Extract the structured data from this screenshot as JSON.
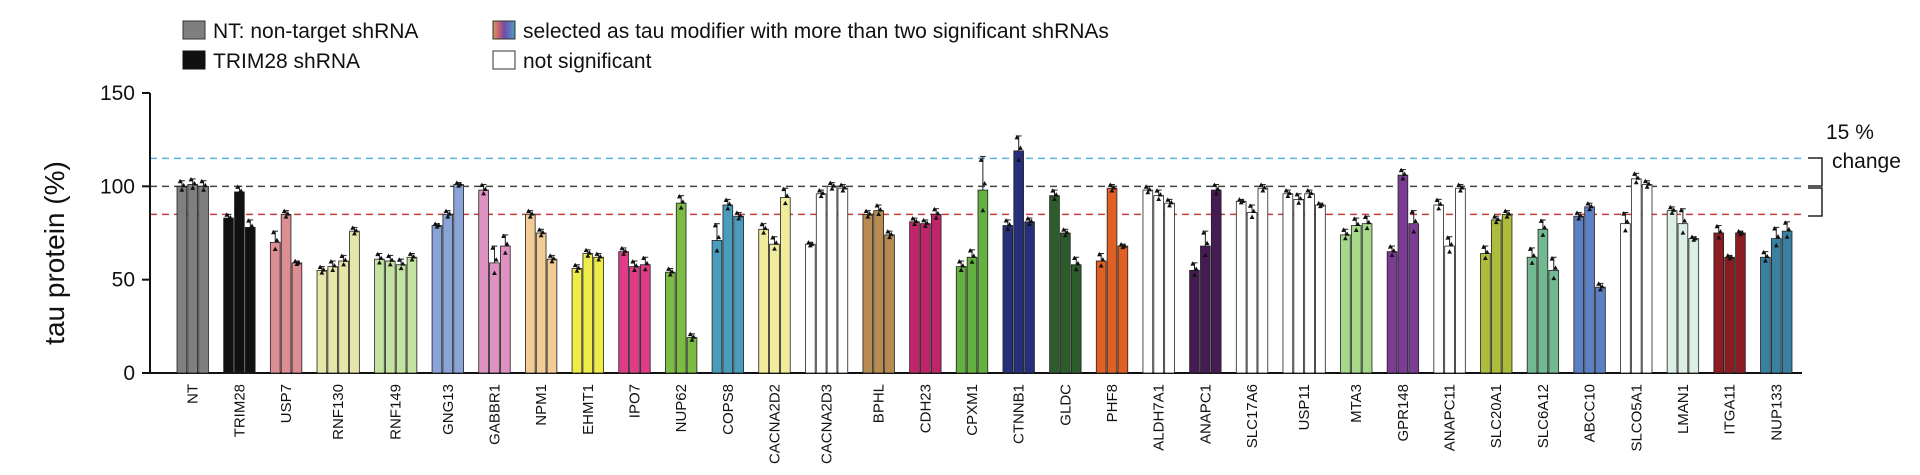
{
  "legend": {
    "items": [
      {
        "label": "NT: non-target shRNA",
        "swatch": "gray",
        "color": "#7f7f7f"
      },
      {
        "label": "TRIM28 shRNA",
        "swatch": "black",
        "color": "#111111"
      },
      {
        "label": "selected as tau modifier with more than two significant shRNAs",
        "swatch": "gradient",
        "colors": [
          "#c8a060",
          "#d06070",
          "#6070c0",
          "#50a0b0"
        ]
      },
      {
        "label": "not significant",
        "swatch": "white",
        "color": "#ffffff"
      }
    ]
  },
  "annotation": {
    "line1": "15 %",
    "line2": "change"
  },
  "chart_data": {
    "type": "bar",
    "title": "",
    "xlabel": "",
    "ylabel": "tau protein (%)",
    "ylim": [
      0,
      150
    ],
    "yticks": [
      0,
      50,
      100,
      150
    ],
    "reference_lines": [
      {
        "value": 115,
        "color": "#5aaee0",
        "style": "dashed"
      },
      {
        "value": 100,
        "color": "#444444",
        "style": "dashed"
      },
      {
        "value": 85,
        "color": "#c04040",
        "style": "dashed"
      }
    ],
    "groups": [
      {
        "label": "NT",
        "color": "#7f7f7f",
        "values": [
          100,
          101,
          100
        ],
        "errors": [
          3,
          3,
          3
        ]
      },
      {
        "label": "TRIM28",
        "color": "#111111",
        "values": [
          83,
          97,
          78
        ],
        "errors": [
          2,
          3,
          4
        ]
      },
      {
        "label": "USP7",
        "color": "#dd8e92",
        "values": [
          70,
          85,
          59
        ],
        "errors": [
          6,
          2,
          1
        ]
      },
      {
        "label": "RNF130",
        "color": "#e6e6a8",
        "values": [
          55,
          57,
          60,
          76
        ],
        "errors": [
          2,
          3,
          3,
          2
        ]
      },
      {
        "label": "RNF149",
        "color": "#c4e2a0",
        "values": [
          61,
          60,
          58,
          62
        ],
        "errors": [
          3,
          3,
          3,
          2
        ]
      },
      {
        "label": "GNG13",
        "color": "#8aa4d8",
        "values": [
          79,
          85,
          101
        ],
        "errors": [
          1,
          2,
          1
        ]
      },
      {
        "label": "GABBR1",
        "color": "#df92c2",
        "values": [
          98,
          59,
          68
        ],
        "errors": [
          3,
          9,
          6
        ]
      },
      {
        "label": "NPM1",
        "color": "#f2cc94",
        "values": [
          85,
          75,
          61
        ],
        "errors": [
          2,
          2,
          2
        ]
      },
      {
        "label": "EHMT1",
        "color": "#eeec48",
        "values": [
          56,
          64,
          62
        ],
        "errors": [
          2,
          2,
          2
        ]
      },
      {
        "label": "IPO7",
        "color": "#de3c86",
        "values": [
          65,
          57,
          58
        ],
        "errors": [
          2,
          3,
          4
        ]
      },
      {
        "label": "NUP62",
        "color": "#7cbc44",
        "values": [
          54,
          91,
          19
        ],
        "errors": [
          2,
          4,
          2
        ]
      },
      {
        "label": "COPS8",
        "color": "#4a9cbc",
        "values": [
          71,
          90,
          84
        ],
        "errors": [
          9,
          3,
          2
        ]
      },
      {
        "label": "CACNA2D2",
        "color": "#f0ec9c",
        "values": [
          77,
          69,
          94
        ],
        "errors": [
          3,
          4,
          5
        ]
      },
      {
        "label": "CACNA2D3",
        "color": "#ffffff",
        "values": [
          69,
          96,
          100,
          99
        ],
        "errors": [
          1,
          2,
          2,
          2
        ]
      },
      {
        "label": "BPHL",
        "color": "#b88c50",
        "values": [
          85,
          87,
          74
        ],
        "errors": [
          2,
          3,
          2
        ]
      },
      {
        "label": "CDH23",
        "color": "#c2246a",
        "values": [
          81,
          80,
          85
        ],
        "errors": [
          2,
          2,
          3
        ]
      },
      {
        "label": "CPXM1",
        "color": "#64b040",
        "values": [
          57,
          62,
          98
        ],
        "errors": [
          3,
          4,
          18
        ]
      },
      {
        "label": "CTNNB1",
        "color": "#26307a",
        "values": [
          79,
          119,
          81
        ],
        "errors": [
          3,
          8,
          2
        ]
      },
      {
        "label": "GLDC",
        "color": "#2c5c2c",
        "values": [
          95,
          75,
          58
        ],
        "errors": [
          3,
          2,
          4
        ]
      },
      {
        "label": "PHF8",
        "color": "#e06024",
        "values": [
          60,
          99,
          68
        ],
        "errors": [
          4,
          2,
          1
        ]
      },
      {
        "label": "ALDH7A1",
        "color": "#ffffff",
        "values": [
          98,
          95,
          91
        ],
        "errors": [
          2,
          3,
          2
        ]
      },
      {
        "label": "ANAPC1",
        "color": "#461a52",
        "values": [
          55,
          68,
          98
        ],
        "errors": [
          4,
          8,
          3
        ]
      },
      {
        "label": "SLC17A6",
        "color": "#ffffff",
        "values": [
          92,
          86,
          99
        ],
        "errors": [
          1,
          4,
          2
        ]
      },
      {
        "label": "USP11",
        "color": "#ffffff",
        "values": [
          96,
          93,
          96,
          90
        ],
        "errors": [
          2,
          3,
          2,
          1
        ]
      },
      {
        "label": "MTA3",
        "color": "#a6d88a",
        "values": [
          74,
          79,
          80
        ],
        "errors": [
          3,
          4,
          4
        ]
      },
      {
        "label": "GPR148",
        "color": "#7c3c94",
        "values": [
          65,
          106,
          80
        ],
        "errors": [
          3,
          3,
          7
        ]
      },
      {
        "label": "ANAPC11",
        "color": "#ffffff",
        "values": [
          90,
          68,
          99
        ],
        "errors": [
          3,
          5,
          2
        ]
      },
      {
        "label": "SLC20A1",
        "color": "#aebc3c",
        "values": [
          64,
          82,
          85
        ],
        "errors": [
          4,
          2,
          2
        ]
      },
      {
        "label": "SLC6A12",
        "color": "#72b890",
        "values": [
          62,
          77,
          55
        ],
        "errors": [
          5,
          5,
          7
        ]
      },
      {
        "label": "ABCC10",
        "color": "#5c80c4",
        "values": [
          84,
          89,
          46
        ],
        "errors": [
          2,
          2,
          2
        ]
      },
      {
        "label": "SLCO5A1",
        "color": "#ffffff",
        "values": [
          80,
          104,
          101
        ],
        "errors": [
          6,
          3,
          2
        ]
      },
      {
        "label": "LMAN1",
        "color": "#dcefe4",
        "values": [
          87,
          80,
          72
        ],
        "errors": [
          2,
          8,
          1
        ]
      },
      {
        "label": "ITGA11",
        "color": "#8a1c22",
        "values": [
          75,
          62,
          75
        ],
        "errors": [
          4,
          1,
          1
        ]
      },
      {
        "label": "NUP133",
        "color": "#3a80a0",
        "values": [
          62,
          72,
          76
        ],
        "errors": [
          3,
          6,
          5
        ]
      }
    ],
    "grid": false,
    "legend_position": "top-left"
  }
}
